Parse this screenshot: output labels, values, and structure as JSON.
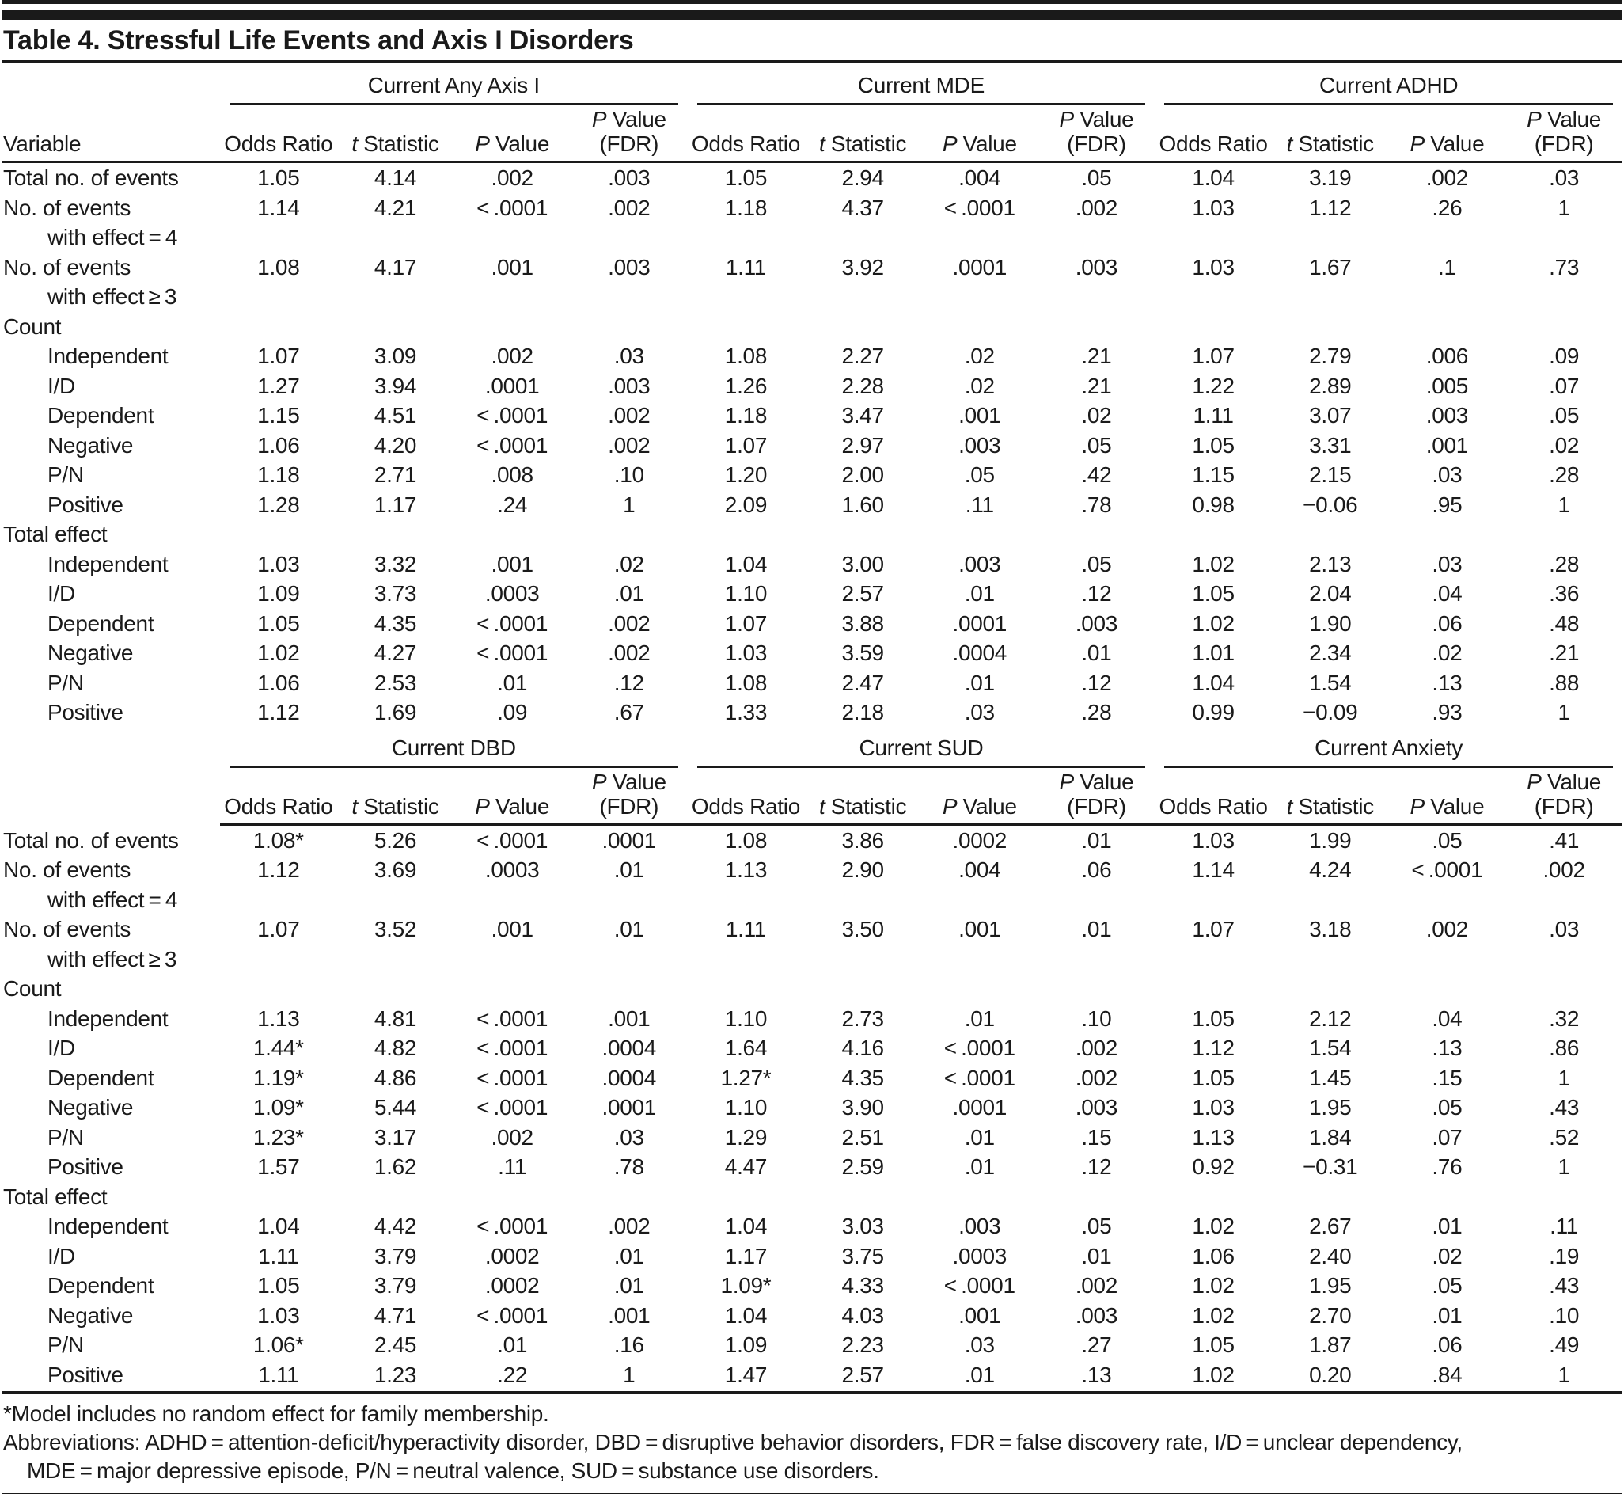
{
  "title": "Table 4. Stressful Life Events and Axis I Disorders",
  "column_headers": {
    "variable": "Variable",
    "odds_ratio": "Odds Ratio",
    "t_italic": "t",
    "t_rest": "Statistic",
    "p_italic": "P",
    "p_rest": "Value",
    "fdr": "(FDR)"
  },
  "halves": [
    {
      "groups": [
        "Current Any Axis I",
        "Current MDE",
        "Current ADHD"
      ],
      "rows": [
        {
          "label": "Total no. of events",
          "cells": [
            "1.05",
            "4.14",
            ".002",
            ".003",
            "1.05",
            "2.94",
            ".004",
            ".05",
            "1.04",
            "3.19",
            ".002",
            ".03"
          ]
        },
        {
          "label": "No. of events",
          "label2": "with effect = 4",
          "cells": [
            "1.14",
            "4.21",
            "< .0001",
            ".002",
            "1.18",
            "4.37",
            "< .0001",
            ".002",
            "1.03",
            "1.12",
            ".26",
            "1"
          ]
        },
        {
          "label": "No. of events",
          "label2": "with effect ≥ 3",
          "cells": [
            "1.08",
            "4.17",
            ".001",
            ".003",
            "1.11",
            "3.92",
            ".0001",
            ".003",
            "1.03",
            "1.67",
            ".1",
            ".73"
          ]
        },
        {
          "label": "Count"
        },
        {
          "label": "Independent",
          "indent": 1,
          "cells": [
            "1.07",
            "3.09",
            ".002",
            ".03",
            "1.08",
            "2.27",
            ".02",
            ".21",
            "1.07",
            "2.79",
            ".006",
            ".09"
          ]
        },
        {
          "label": "I/D",
          "indent": 1,
          "cells": [
            "1.27",
            "3.94",
            ".0001",
            ".003",
            "1.26",
            "2.28",
            ".02",
            ".21",
            "1.22",
            "2.89",
            ".005",
            ".07"
          ]
        },
        {
          "label": "Dependent",
          "indent": 1,
          "cells": [
            "1.15",
            "4.51",
            "< .0001",
            ".002",
            "1.18",
            "3.47",
            ".001",
            ".02",
            "1.11",
            "3.07",
            ".003",
            ".05"
          ]
        },
        {
          "label": "Negative",
          "indent": 1,
          "cells": [
            "1.06",
            "4.20",
            "< .0001",
            ".002",
            "1.07",
            "2.97",
            ".003",
            ".05",
            "1.05",
            "3.31",
            ".001",
            ".02"
          ]
        },
        {
          "label": "P/N",
          "indent": 1,
          "cells": [
            "1.18",
            "2.71",
            ".008",
            ".10",
            "1.20",
            "2.00",
            ".05",
            ".42",
            "1.15",
            "2.15",
            ".03",
            ".28"
          ]
        },
        {
          "label": "Positive",
          "indent": 1,
          "cells": [
            "1.28",
            "1.17",
            ".24",
            "1",
            "2.09",
            "1.60",
            ".11",
            ".78",
            "0.98",
            "−0.06",
            ".95",
            "1"
          ]
        },
        {
          "label": "Total effect"
        },
        {
          "label": "Independent",
          "indent": 1,
          "cells": [
            "1.03",
            "3.32",
            ".001",
            ".02",
            "1.04",
            "3.00",
            ".003",
            ".05",
            "1.02",
            "2.13",
            ".03",
            ".28"
          ]
        },
        {
          "label": "I/D",
          "indent": 1,
          "cells": [
            "1.09",
            "3.73",
            ".0003",
            ".01",
            "1.10",
            "2.57",
            ".01",
            ".12",
            "1.05",
            "2.04",
            ".04",
            ".36"
          ]
        },
        {
          "label": "Dependent",
          "indent": 1,
          "cells": [
            "1.05",
            "4.35",
            "< .0001",
            ".002",
            "1.07",
            "3.88",
            ".0001",
            ".003",
            "1.02",
            "1.90",
            ".06",
            ".48"
          ]
        },
        {
          "label": "Negative",
          "indent": 1,
          "cells": [
            "1.02",
            "4.27",
            "< .0001",
            ".002",
            "1.03",
            "3.59",
            ".0004",
            ".01",
            "1.01",
            "2.34",
            ".02",
            ".21"
          ]
        },
        {
          "label": "P/N",
          "indent": 1,
          "cells": [
            "1.06",
            "2.53",
            ".01",
            ".12",
            "1.08",
            "2.47",
            ".01",
            ".12",
            "1.04",
            "1.54",
            ".13",
            ".88"
          ]
        },
        {
          "label": "Positive",
          "indent": 1,
          "cells": [
            "1.12",
            "1.69",
            ".09",
            ".67",
            "1.33",
            "2.18",
            ".03",
            ".28",
            "0.99",
            "−0.09",
            ".93",
            "1"
          ]
        }
      ]
    },
    {
      "groups": [
        "Current DBD",
        "Current SUD",
        "Current Anxiety"
      ],
      "rows": [
        {
          "label": "Total no. of events",
          "cells": [
            "1.08*",
            "5.26",
            "< .0001",
            ".0001",
            "1.08",
            "3.86",
            ".0002",
            ".01",
            "1.03",
            "1.99",
            ".05",
            ".41"
          ]
        },
        {
          "label": "No. of events",
          "label2": "with effect = 4",
          "cells": [
            "1.12",
            "3.69",
            ".0003",
            ".01",
            "1.13",
            "2.90",
            ".004",
            ".06",
            "1.14",
            "4.24",
            "< .0001",
            ".002"
          ]
        },
        {
          "label": "No. of events",
          "label2": "with effect ≥ 3",
          "cells": [
            "1.07",
            "3.52",
            ".001",
            ".01",
            "1.11",
            "3.50",
            ".001",
            ".01",
            "1.07",
            "3.18",
            ".002",
            ".03"
          ]
        },
        {
          "label": "Count"
        },
        {
          "label": "Independent",
          "indent": 1,
          "cells": [
            "1.13",
            "4.81",
            "< .0001",
            ".001",
            "1.10",
            "2.73",
            ".01",
            ".10",
            "1.05",
            "2.12",
            ".04",
            ".32"
          ]
        },
        {
          "label": "I/D",
          "indent": 1,
          "cells": [
            "1.44*",
            "4.82",
            "< .0001",
            ".0004",
            "1.64",
            "4.16",
            "< .0001",
            ".002",
            "1.12",
            "1.54",
            ".13",
            ".86"
          ]
        },
        {
          "label": "Dependent",
          "indent": 1,
          "cells": [
            "1.19*",
            "4.86",
            "< .0001",
            ".0004",
            "1.27*",
            "4.35",
            "< .0001",
            ".002",
            "1.05",
            "1.45",
            ".15",
            "1"
          ]
        },
        {
          "label": "Negative",
          "indent": 1,
          "cells": [
            "1.09*",
            "5.44",
            "< .0001",
            ".0001",
            "1.10",
            "3.90",
            ".0001",
            ".003",
            "1.03",
            "1.95",
            ".05",
            ".43"
          ]
        },
        {
          "label": "P/N",
          "indent": 1,
          "cells": [
            "1.23*",
            "3.17",
            ".002",
            ".03",
            "1.29",
            "2.51",
            ".01",
            ".15",
            "1.13",
            "1.84",
            ".07",
            ".52"
          ]
        },
        {
          "label": "Positive",
          "indent": 1,
          "cells": [
            "1.57",
            "1.62",
            ".11",
            ".78",
            "4.47",
            "2.59",
            ".01",
            ".12",
            "0.92",
            "−0.31",
            ".76",
            "1"
          ]
        },
        {
          "label": "Total effect"
        },
        {
          "label": "Independent",
          "indent": 1,
          "cells": [
            "1.04",
            "4.42",
            "< .0001",
            ".002",
            "1.04",
            "3.03",
            ".003",
            ".05",
            "1.02",
            "2.67",
            ".01",
            ".11"
          ]
        },
        {
          "label": "I/D",
          "indent": 1,
          "cells": [
            "1.11",
            "3.79",
            ".0002",
            ".01",
            "1.17",
            "3.75",
            ".0003",
            ".01",
            "1.06",
            "2.40",
            ".02",
            ".19"
          ]
        },
        {
          "label": "Dependent",
          "indent": 1,
          "cells": [
            "1.05",
            "3.79",
            ".0002",
            ".01",
            "1.09*",
            "4.33",
            "< .0001",
            ".002",
            "1.02",
            "1.95",
            ".05",
            ".43"
          ]
        },
        {
          "label": "Negative",
          "indent": 1,
          "cells": [
            "1.03",
            "4.71",
            "< .0001",
            ".001",
            "1.04",
            "4.03",
            ".001",
            ".003",
            "1.02",
            "2.70",
            ".01",
            ".10"
          ]
        },
        {
          "label": "P/N",
          "indent": 1,
          "cells": [
            "1.06*",
            "2.45",
            ".01",
            ".16",
            "1.09",
            "2.23",
            ".03",
            ".27",
            "1.05",
            "1.87",
            ".06",
            ".49"
          ]
        },
        {
          "label": "Positive",
          "indent": 1,
          "cells": [
            "1.11",
            "1.23",
            ".22",
            "1",
            "1.47",
            "2.57",
            ".01",
            ".13",
            "1.02",
            "0.20",
            ".84",
            "1"
          ]
        }
      ]
    }
  ],
  "footnotes": {
    "model": "*Model includes no random effect for family membership.",
    "abbr_line1": "Abbreviations: ADHD = attention-deficit/hyperactivity disorder, DBD = disruptive behavior disorders, FDR = false discovery rate, I/D = unclear dependency,",
    "abbr_line2": "MDE = major depressive episode, P/N = neutral valence, SUD = substance use disorders."
  }
}
